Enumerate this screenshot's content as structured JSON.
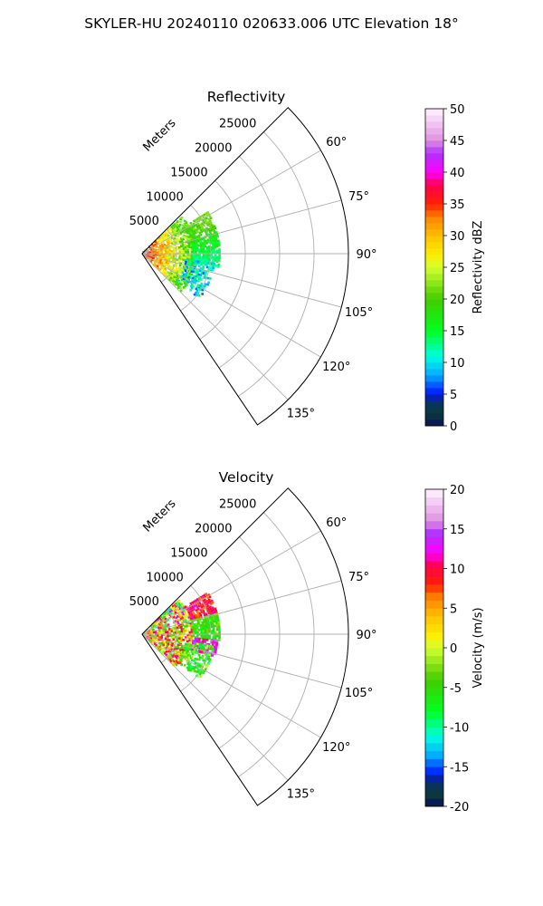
{
  "figure_title": "SKYLER-HU  20240110  020633.006 UTC Elevation 18°",
  "colormap_stops": [
    [
      0.0,
      "#08105a"
    ],
    [
      0.04,
      "#0c3a3a"
    ],
    [
      0.08,
      "#08306e"
    ],
    [
      0.1,
      "#0010ff"
    ],
    [
      0.16,
      "#00aaff"
    ],
    [
      0.22,
      "#00ffe0"
    ],
    [
      0.3,
      "#00ff20"
    ],
    [
      0.4,
      "#44cc00"
    ],
    [
      0.5,
      "#d4ff30"
    ],
    [
      0.54,
      "#ffee00"
    ],
    [
      0.6,
      "#ffc000"
    ],
    [
      0.66,
      "#ff8000"
    ],
    [
      0.7,
      "#ff2000"
    ],
    [
      0.76,
      "#ff0050"
    ],
    [
      0.8,
      "#ff00ff"
    ],
    [
      0.86,
      "#b030ff"
    ],
    [
      0.9,
      "#e090e0"
    ],
    [
      1.0,
      "#fff4ff"
    ]
  ],
  "chart_data": [
    {
      "type": "heatmap",
      "projection": "polar-sector",
      "title": "Reflectivity",
      "radial_label": "Meters",
      "radial_ticks": [
        "5000",
        "10000",
        "15000",
        "20000",
        "25000"
      ],
      "radial_tick_values": [
        5000,
        10000,
        15000,
        20000,
        25000
      ],
      "rmax": 30000,
      "azimuth_range": [
        45,
        146
      ],
      "azimuth_ticks": [
        60,
        75,
        90,
        105,
        120,
        135
      ],
      "azimuth_tick_labels": [
        "60°",
        "75°",
        "90°",
        "105°",
        "120°",
        "135°"
      ],
      "colorbar": {
        "label": "Reflectivity dBZ",
        "min": 0,
        "max": 50,
        "ticks": [
          "0",
          "5",
          "10",
          "15",
          "20",
          "25",
          "30",
          "35",
          "40",
          "45",
          "50"
        ],
        "tick_values": [
          0,
          5,
          10,
          15,
          20,
          25,
          30,
          35,
          40,
          45,
          50
        ],
        "levels": 50
      },
      "echo_regions": [
        {
          "az": [
            48,
            134
          ],
          "range_m": [
            300,
            8000
          ],
          "value": [
            18,
            36
          ],
          "gradient": "decreasing-with-range",
          "density": 0.8
        },
        {
          "az": [
            58,
            100
          ],
          "range_m": [
            7500,
            11500
          ],
          "value": [
            12,
            22
          ],
          "gradient": "decreasing-with-azimuth",
          "density": 0.85
        },
        {
          "az": [
            98,
            128
          ],
          "range_m": [
            6500,
            10800
          ],
          "value": [
            6,
            14
          ],
          "gradient": "none",
          "density": 0.6
        }
      ]
    },
    {
      "type": "heatmap",
      "projection": "polar-sector",
      "title": "Velocity",
      "radial_label": "Meters",
      "radial_ticks": [
        "5000",
        "10000",
        "15000",
        "20000",
        "25000"
      ],
      "radial_tick_values": [
        5000,
        10000,
        15000,
        20000,
        25000
      ],
      "rmax": 30000,
      "azimuth_range": [
        45,
        146
      ],
      "azimuth_ticks": [
        60,
        75,
        90,
        105,
        120,
        135
      ],
      "azimuth_tick_labels": [
        "60°",
        "75°",
        "90°",
        "105°",
        "120°",
        "135°"
      ],
      "colorbar": {
        "label": "Velocity (m/s)",
        "min": -20,
        "max": 20,
        "ticks": [
          "-20",
          "-15",
          "-10",
          "-5",
          "0",
          "5",
          "10",
          "15",
          "20"
        ],
        "tick_values": [
          -20,
          -15,
          -10,
          -5,
          0,
          5,
          10,
          15,
          20
        ],
        "levels": 40
      },
      "echo_regions": [
        {
          "az": [
            48,
            80
          ],
          "range_m": [
            300,
            7500
          ],
          "value": [
            -12,
            14
          ],
          "gradient": "none",
          "density": 0.8
        },
        {
          "az": [
            80,
            134
          ],
          "range_m": [
            300,
            7500
          ],
          "value": [
            -6,
            12
          ],
          "gradient": "none",
          "density": 0.8
        },
        {
          "az": [
            58,
            75
          ],
          "range_m": [
            7500,
            11500
          ],
          "value": [
            6,
            12
          ],
          "gradient": "none",
          "density": 0.85
        },
        {
          "az": [
            75,
            95
          ],
          "range_m": [
            7500,
            11500
          ],
          "value": [
            -8,
            -2
          ],
          "gradient": "none",
          "density": 0.85
        },
        {
          "az": [
            95,
            108
          ],
          "range_m": [
            7500,
            11000
          ],
          "value": [
            10,
            16
          ],
          "gradient": "none",
          "density": 0.8
        },
        {
          "az": [
            100,
            128
          ],
          "range_m": [
            6500,
            10800
          ],
          "value": [
            -10,
            0
          ],
          "gradient": "none",
          "density": 0.6
        }
      ]
    }
  ]
}
